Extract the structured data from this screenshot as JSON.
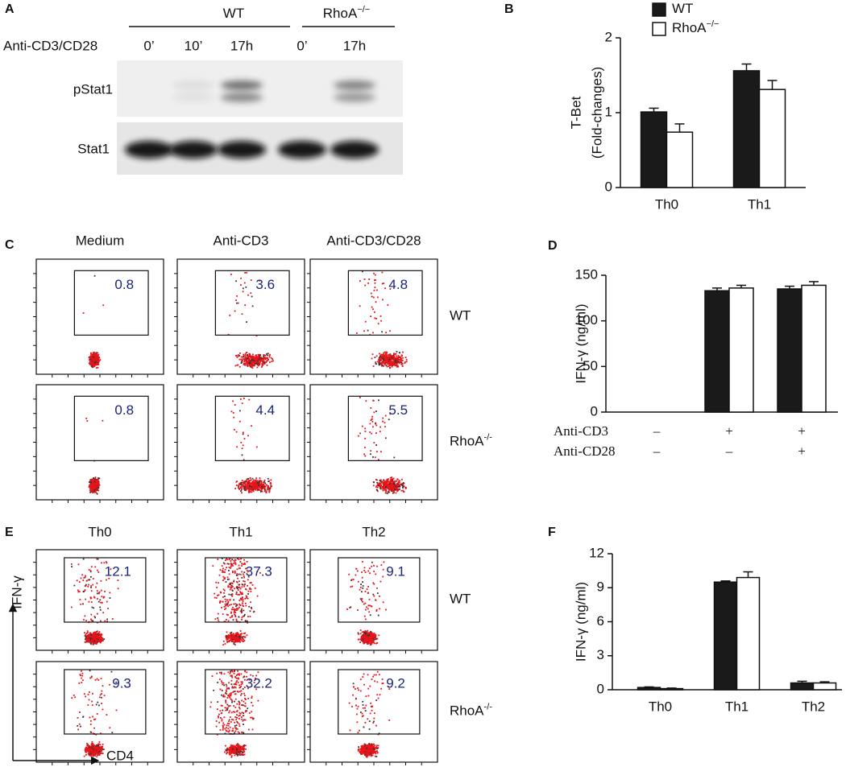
{
  "panel_a": {
    "label": "A",
    "groups": [
      {
        "name": "WT"
      },
      {
        "name": "RhoA",
        "sup": "−/−"
      }
    ],
    "treatment": "Anti-CD3/CD28",
    "lanes": [
      "0’",
      "10’",
      "17h",
      "0’",
      "17h"
    ],
    "rows": [
      "pStat1",
      "Stat1"
    ]
  },
  "panel_c": {
    "label": "C",
    "columns": [
      "Medium",
      "Anti-CD3",
      "Anti-CD3/CD28"
    ],
    "row_labels": [
      {
        "name": "WT"
      },
      {
        "name": "RhoA",
        "sup": "-/-"
      }
    ],
    "percentages": [
      [
        0.8,
        3.6,
        4.8
      ],
      [
        0.8,
        4.4,
        5.5
      ]
    ]
  },
  "panel_e": {
    "label": "E",
    "columns": [
      "Th0",
      "Th1",
      "Th2"
    ],
    "row_labels": [
      {
        "name": "WT"
      },
      {
        "name": "RhoA",
        "sup": "-/-"
      }
    ],
    "percentages": [
      [
        12.1,
        37.3,
        9.1
      ],
      [
        9.3,
        32.2,
        9.2
      ]
    ],
    "y_label": "IFN-γ",
    "x_label": "CD4"
  },
  "chart_data": [
    {
      "label": "B",
      "type": "bar",
      "ylabel": [
        "T-Bet",
        "(Fold-changes)"
      ],
      "categories": [
        "Th0",
        "Th1"
      ],
      "series": [
        {
          "name": "WT",
          "color": "#1a1a1a",
          "values": [
            1.01,
            1.56
          ],
          "errors": [
            0.05,
            0.09
          ]
        },
        {
          "name": "RhoA",
          "name_sup": "−/−",
          "color": "#ffffff",
          "values": [
            0.74,
            1.31
          ],
          "errors": [
            0.11,
            0.12
          ]
        }
      ],
      "ylim": [
        0,
        2
      ],
      "yticks": [
        0,
        1,
        2
      ],
      "legend": "upper left"
    },
    {
      "label": "D",
      "type": "bar",
      "ylabel": [
        "IFN-γ (ng/ml)"
      ],
      "categories": [
        null,
        null,
        null
      ],
      "series": [
        {
          "name": "WT",
          "color": "#1a1a1a",
          "values": [
            0,
            133,
            135
          ],
          "errors": [
            0,
            3,
            3
          ]
        },
        {
          "name": "RhoA",
          "color": "#ffffff",
          "values": [
            0,
            136,
            139
          ],
          "errors": [
            0,
            3,
            4
          ]
        }
      ],
      "ylim": [
        0,
        150
      ],
      "yticks": [
        0,
        50,
        100,
        150
      ],
      "conditions": [
        {
          "name": "Anti-CD3",
          "signs": [
            "–",
            "+",
            "+"
          ]
        },
        {
          "name": "Anti-CD28",
          "signs": [
            "–",
            "–",
            "+"
          ]
        }
      ]
    },
    {
      "label": "F",
      "type": "bar",
      "ylabel": [
        "IFN-γ (ng/ml)"
      ],
      "categories": [
        "Th0",
        "Th1",
        "Th2"
      ],
      "series": [
        {
          "name": "WT",
          "color": "#1a1a1a",
          "values": [
            0.2,
            9.5,
            0.6
          ],
          "errors": [
            0.05,
            0.1,
            0.15
          ]
        },
        {
          "name": "RhoA",
          "color": "#ffffff",
          "values": [
            0.1,
            9.9,
            0.6
          ],
          "errors": [
            0.05,
            0.5,
            0.1
          ]
        }
      ],
      "ylim": [
        0,
        12
      ],
      "yticks": [
        0,
        3,
        6,
        9,
        12
      ]
    }
  ]
}
